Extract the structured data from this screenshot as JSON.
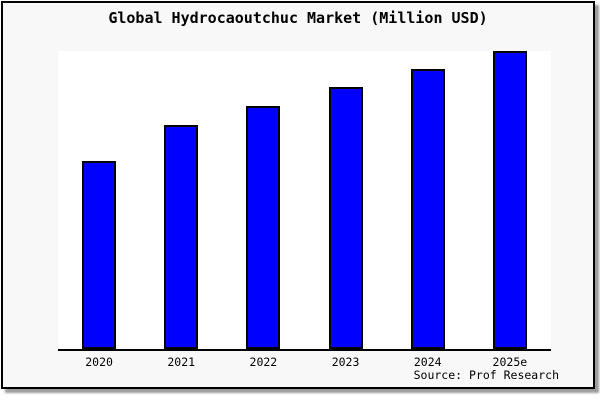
{
  "header": {
    "title": "Global Hydrocaoutchuc Market (Million USD)"
  },
  "footer": {
    "source": "Source: Prof Research"
  },
  "colors": {
    "bar_fill": "#0000fe",
    "bar_border": "#000000",
    "figure_background": "#f8f8f8",
    "plot_background": "#ffffff",
    "border": "#000000",
    "shadow": "#9c9c9c"
  },
  "chart_data": {
    "type": "bar",
    "title": "Global Hydrocaoutchuc Market (Million USD)",
    "source": "Source: Prof Research",
    "categories": [
      "2020",
      "2021",
      "2022",
      "2023",
      "2024",
      "2025e"
    ],
    "values_pct_of_max": [
      63.0,
      75.3,
      81.7,
      88.0,
      94.0,
      100.0
    ],
    "value_axis": "unlabeled (no y-axis ticks or values shown)",
    "xlabel": "",
    "ylabel": "",
    "grid": false,
    "legend": "none",
    "bar_color": "#0000fe",
    "bar_border_color": "#000000"
  }
}
